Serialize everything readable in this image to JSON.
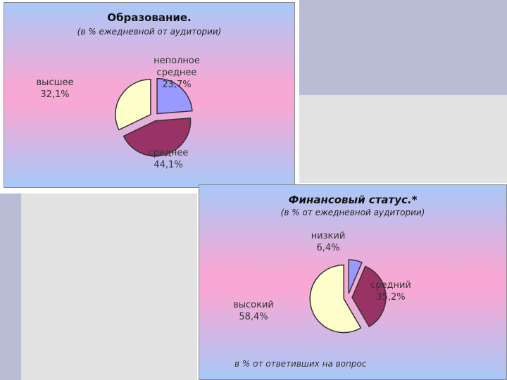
{
  "chart_data": [
    {
      "type": "pie",
      "title": "Образование.",
      "subtitle": "(в % ежедневной от аудитории)",
      "categories": [
        "неполное среднее",
        "среднее",
        "высшее"
      ],
      "values": [
        23.7,
        44.1,
        32.1
      ],
      "value_labels": [
        "23,7%",
        "44,1%",
        "32,1%"
      ],
      "colors": [
        "#9999ff",
        "#993366",
        "#ffffcc"
      ]
    },
    {
      "type": "pie",
      "title": "Финансовый статус.*",
      "subtitle": "(в % от ежедневной аудитории)",
      "categories": [
        "низкий",
        "средний",
        "высокий"
      ],
      "values": [
        6.4,
        35.2,
        58.4
      ],
      "value_labels": [
        "6,4%",
        "35,2%",
        "58,4%"
      ],
      "colors": [
        "#9999ff",
        "#993366",
        "#ffffcc"
      ],
      "note": "в % от ответивших на вопрос"
    }
  ]
}
